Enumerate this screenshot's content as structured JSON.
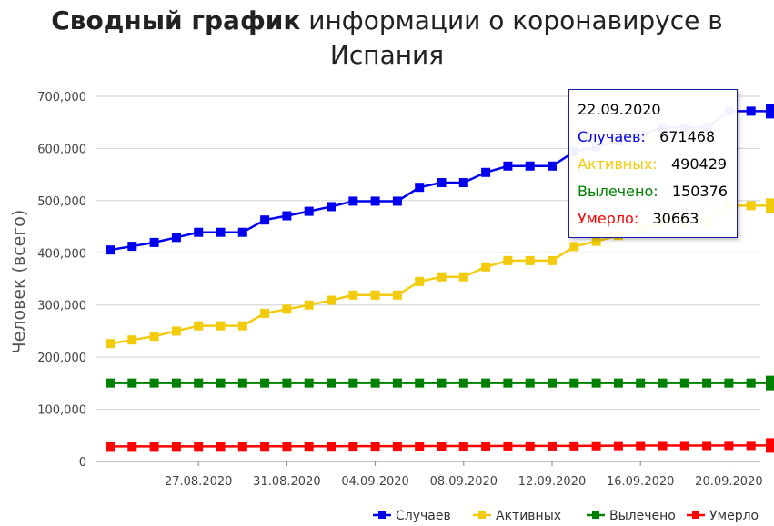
{
  "title": {
    "bold": "Сводный график",
    "rest": " информации о коронавирусе в Испания"
  },
  "chart_data": {
    "type": "line",
    "ylabel": "Человек (всего)",
    "xlabel": "",
    "ylim": [
      0,
      700000
    ],
    "yticks": [
      0,
      100000,
      200000,
      300000,
      400000,
      500000,
      600000,
      700000
    ],
    "ytick_labels": [
      "0",
      "100,000",
      "200,000",
      "300,000",
      "400,000",
      "500,000",
      "600,000",
      "700,000"
    ],
    "x": [
      "23.08.2020",
      "24.08.2020",
      "25.08.2020",
      "26.08.2020",
      "27.08.2020",
      "28.08.2020",
      "29.08.2020",
      "30.08.2020",
      "31.08.2020",
      "01.09.2020",
      "02.09.2020",
      "03.09.2020",
      "04.09.2020",
      "05.09.2020",
      "06.09.2020",
      "07.09.2020",
      "08.09.2020",
      "09.09.2020",
      "10.09.2020",
      "11.09.2020",
      "12.09.2020",
      "13.09.2020",
      "14.09.2020",
      "15.09.2020",
      "16.09.2020",
      "17.09.2020",
      "18.09.2020",
      "19.09.2020",
      "20.09.2020",
      "21.09.2020",
      "22.09.2020"
    ],
    "x_tick_labels": [
      "27.08.2020",
      "31.08.2020",
      "04.09.2020",
      "08.09.2020",
      "12.09.2020",
      "16.09.2020",
      "20.09.2020"
    ],
    "series": [
      {
        "name": "Случаев",
        "color": "#0000ee",
        "values": [
          405436,
          412553,
          419849,
          429507,
          439286,
          439286,
          439286,
          462858,
          470973,
          479554,
          488513,
          498989,
          498989,
          498989,
          525549,
          534513,
          534513,
          554143,
          566326,
          566326,
          566326,
          593730,
          603167,
          614360,
          625651,
          640040,
          640040,
          640040,
          671468,
          671468,
          671468
        ]
      },
      {
        "name": "Активных",
        "color": "#f2cc0c",
        "values": [
          226000,
          233000,
          240000,
          250000,
          260000,
          260000,
          260000,
          284000,
          292000,
          300000,
          309000,
          319000,
          319000,
          319000,
          345000,
          354000,
          354000,
          373000,
          385000,
          385000,
          385000,
          412000,
          422000,
          433000,
          444000,
          458000,
          458000,
          458000,
          490429,
          490429,
          490429
        ]
      },
      {
        "name": "Вылечено",
        "color": "#008000",
        "values": [
          150376,
          150376,
          150376,
          150376,
          150376,
          150376,
          150376,
          150376,
          150376,
          150376,
          150376,
          150376,
          150376,
          150376,
          150376,
          150376,
          150376,
          150376,
          150376,
          150376,
          150376,
          150376,
          150376,
          150376,
          150376,
          150376,
          150376,
          150376,
          150376,
          150376,
          150376
        ]
      },
      {
        "name": "Умерло",
        "color": "#ff0000",
        "values": [
          28838,
          28872,
          28924,
          28971,
          29011,
          29011,
          29011,
          29094,
          29152,
          29194,
          29234,
          29418,
          29418,
          29418,
          29516,
          29594,
          29594,
          29699,
          29747,
          29747,
          29747,
          29848,
          30004,
          30243,
          30405,
          30495,
          30495,
          30495,
          30663,
          30663,
          30663
        ]
      }
    ],
    "grid": true,
    "legend_position": "bottom-right"
  },
  "tooltip": {
    "date": "22.09.2020",
    "rows": [
      {
        "label": "Случаев:",
        "value": "671468",
        "color": "#0000ee"
      },
      {
        "label": "Активных:",
        "value": "490429",
        "color": "#f2cc0c"
      },
      {
        "label": "Вылечено:",
        "value": "150376",
        "color": "#008000"
      },
      {
        "label": "Умерло:",
        "value": "30663",
        "color": "#ff0000"
      }
    ]
  }
}
